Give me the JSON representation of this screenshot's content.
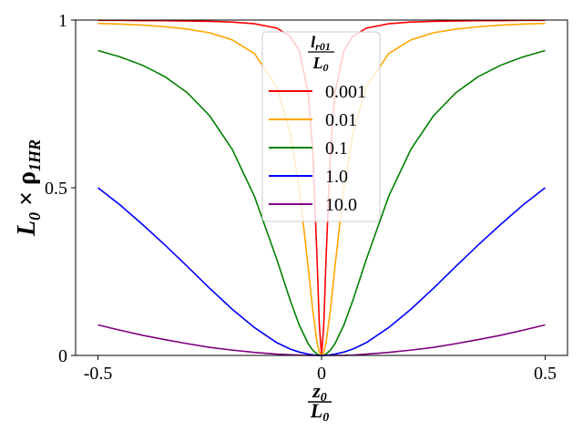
{
  "chart_data": {
    "type": "line",
    "xlabel": {
      "num": [
        "z",
        "0"
      ],
      "den": [
        "L",
        "0"
      ]
    },
    "ylabel": [
      "L",
      "0",
      " × ρ",
      "1HR"
    ],
    "legend_title": {
      "num": [
        "l",
        "r01"
      ],
      "den": [
        "L",
        "0"
      ]
    },
    "legend": "upper center",
    "grid": false,
    "xlim": [
      -0.55,
      0.55
    ],
    "xticks": [
      -0.5,
      0,
      0.5
    ],
    "ylim": [
      0,
      1
    ],
    "yticks": [
      0,
      0.5,
      1
    ],
    "x": [
      -0.5,
      -0.45,
      -0.4,
      -0.35,
      -0.3,
      -0.25,
      -0.2,
      -0.15,
      -0.1,
      -0.07,
      -0.05,
      -0.03,
      -0.02,
      -0.01,
      -0.005,
      0,
      0.005,
      0.01,
      0.02,
      0.03,
      0.05,
      0.07,
      0.1,
      0.15,
      0.2,
      0.25,
      0.3,
      0.35,
      0.4,
      0.45,
      0.5
    ],
    "series": [
      {
        "name": "0.001",
        "color": "#ff0000",
        "values": [
          0.999,
          0.999,
          0.998,
          0.998,
          0.997,
          0.996,
          0.994,
          0.989,
          0.976,
          0.951,
          0.909,
          0.783,
          0.615,
          0.286,
          0.091,
          0,
          0.091,
          0.286,
          0.615,
          0.783,
          0.909,
          0.951,
          0.976,
          0.989,
          0.994,
          0.996,
          0.997,
          0.998,
          0.998,
          0.999,
          0.999
        ]
      },
      {
        "name": "0.01",
        "color": "#ffa500",
        "values": [
          0.99,
          0.988,
          0.985,
          0.98,
          0.973,
          0.962,
          0.941,
          0.9,
          0.8,
          0.662,
          0.5,
          0.265,
          0.138,
          0.038,
          0.01,
          0,
          0.01,
          0.038,
          0.138,
          0.265,
          0.5,
          0.662,
          0.8,
          0.9,
          0.941,
          0.962,
          0.973,
          0.98,
          0.985,
          0.988,
          0.99
        ]
      },
      {
        "name": "0.1",
        "color": "#008000",
        "values": [
          0.909,
          0.89,
          0.865,
          0.831,
          0.783,
          0.714,
          0.615,
          0.474,
          0.286,
          0.164,
          0.091,
          0.035,
          0.016,
          0.004,
          0.001,
          0,
          0.001,
          0.004,
          0.016,
          0.035,
          0.091,
          0.164,
          0.286,
          0.474,
          0.615,
          0.714,
          0.783,
          0.831,
          0.865,
          0.89,
          0.909
        ]
      },
      {
        "name": "1.0",
        "color": "#0000ff",
        "values": [
          0.5,
          0.448,
          0.39,
          0.329,
          0.265,
          0.2,
          0.138,
          0.083,
          0.038,
          0.019,
          0.01,
          0.004,
          0.002,
          0,
          0,
          0,
          0,
          0,
          0.002,
          0.004,
          0.01,
          0.019,
          0.038,
          0.083,
          0.138,
          0.2,
          0.265,
          0.329,
          0.39,
          0.448,
          0.5
        ]
      },
      {
        "name": "10.0",
        "color": "#800080",
        "values": [
          0.091,
          0.075,
          0.06,
          0.047,
          0.035,
          0.024,
          0.016,
          0.009,
          0.004,
          0.002,
          0.001,
          0,
          0,
          0,
          0,
          0,
          0,
          0,
          0,
          0,
          0,
          0.001,
          0.004,
          0.009,
          0.016,
          0.024,
          0.035,
          0.047,
          0.06,
          0.075,
          0.091
        ]
      }
    ]
  }
}
